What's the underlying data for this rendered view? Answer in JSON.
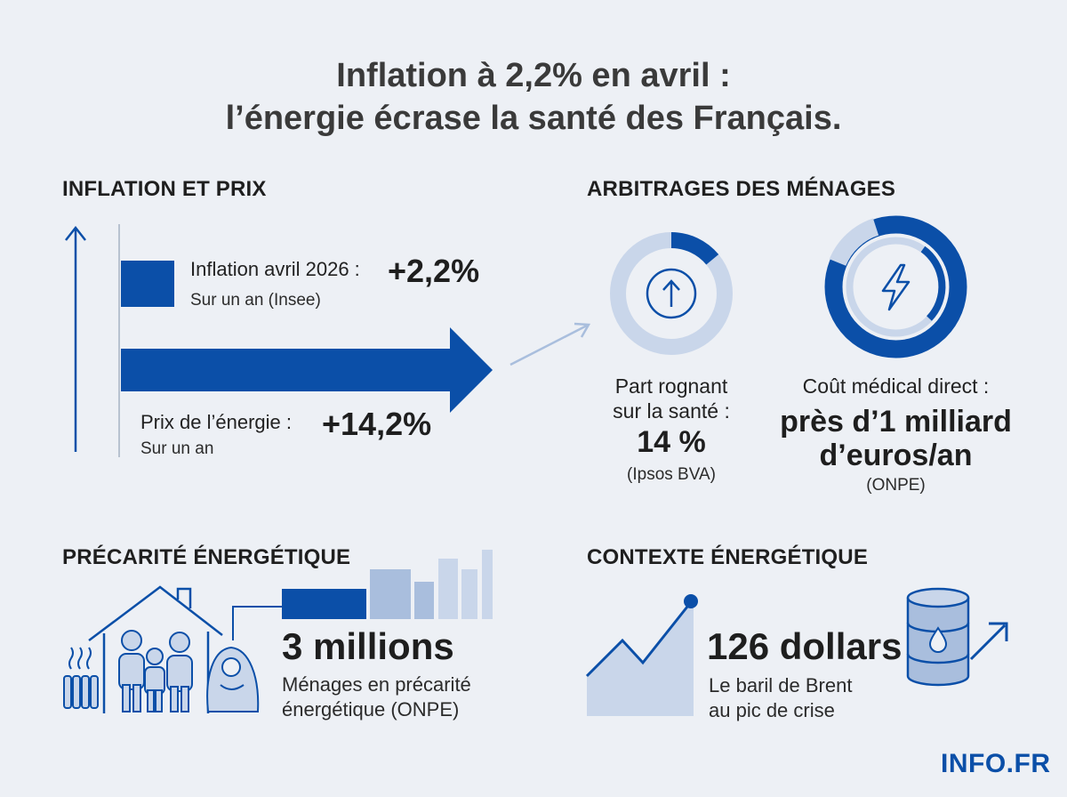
{
  "title": {
    "line1": "Inflation à 2,2% en avril :",
    "line2": "l’énergie écrase la santé des Français."
  },
  "inflation_section": {
    "heading": "INFLATION ET PRIX",
    "inflation_label": "Inflation avril 2026 :",
    "inflation_value": "+2,2%",
    "inflation_note": "Sur un an (Insee)",
    "energy_label": "Prix de l’énergie :",
    "energy_value": "+14,2%",
    "energy_note": "Sur un an"
  },
  "households_section": {
    "heading": "ARBITRAGES DES MÉNAGES",
    "health_label_line1": "Part rognant",
    "health_label_line2": "sur la santé :",
    "health_value": "14 %",
    "health_source": "(Ipsos BVA)",
    "health_share": 0.14,
    "cost_label": "Coût médical direct :",
    "cost_value_line1": "près d’1 milliard",
    "cost_value_line2": "d’euros/an",
    "cost_source": "(ONPE)"
  },
  "precarity_section": {
    "heading": "PRÉCARITÉ ÉNERGÉTIQUE",
    "value": "3 millions",
    "desc_line1": "Ménages en précarité",
    "desc_line2": "énergétique (ONPE)"
  },
  "energy_context_section": {
    "heading": "CONTEXTE ÉNERGÉTIQUE",
    "value": "126 dollars",
    "desc_line1": "Le baril de Brent",
    "desc_line2": "au pic de crise"
  },
  "brand": {
    "part1": "INFO",
    "part2": ".FR"
  },
  "colors": {
    "primary": "#0b4fa8",
    "light": "#a9bedd",
    "pale": "#c9d6ea",
    "background": "#edf0f5",
    "accent": "#f5b800"
  },
  "icons": [
    "arrow-up-icon",
    "arrow-right-icon",
    "upload-arrow-icon",
    "lightning-icon",
    "house-icon",
    "family-icon",
    "radiator-icon",
    "oil-barrel-icon",
    "trend-line-icon"
  ]
}
